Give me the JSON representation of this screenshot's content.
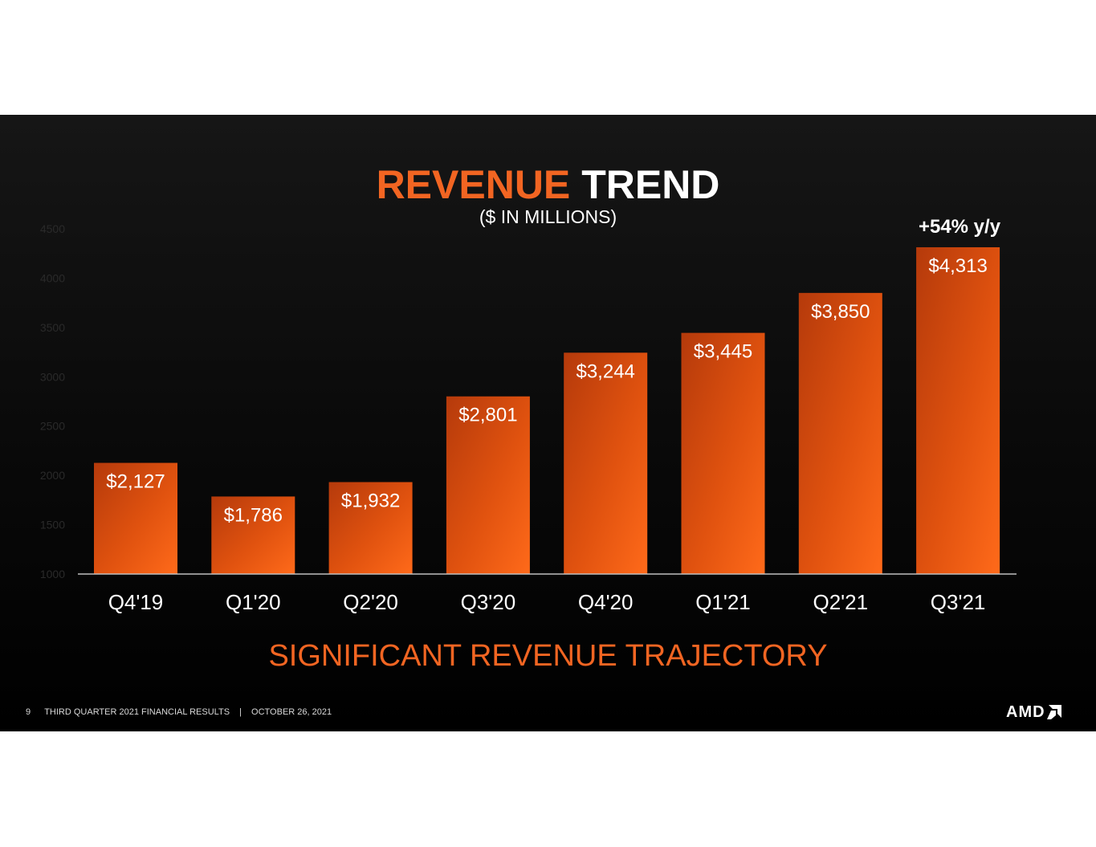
{
  "slide": {
    "title_accent": "REVENUE",
    "title_rest": "TREND",
    "subtitle": "($ IN MILLIONS)",
    "callout": "+54% y/y",
    "tagline": "SIGNIFICANT REVENUE TRAJECTORY",
    "footer": {
      "page_number": "9",
      "deck_title": "THIRD QUARTER 2021 FINANCIAL RESULTS",
      "separator": "|",
      "date": "OCTOBER 26, 2021"
    },
    "logo_text": "AMD",
    "colors": {
      "accent": "#f26522",
      "bar_dark": "#b83d0c",
      "bar_light": "#ff6a1a"
    }
  },
  "chart_data": {
    "type": "bar",
    "categories": [
      "Q4'19",
      "Q1'20",
      "Q2'20",
      "Q3'20",
      "Q4'20",
      "Q1'21",
      "Q2'21",
      "Q3'21"
    ],
    "values": [
      2127,
      1786,
      1932,
      2801,
      3244,
      3445,
      3850,
      4313
    ],
    "data_labels": [
      "$2,127",
      "$1,786",
      "$1,932",
      "$2,801",
      "$3,244",
      "$3,445",
      "$3,850",
      "$4,313"
    ],
    "y_ticks": [
      1000,
      1500,
      2000,
      2500,
      3000,
      3500,
      4000,
      4500
    ],
    "ylim": [
      1000,
      4500
    ],
    "grid": false,
    "legend": "none"
  }
}
